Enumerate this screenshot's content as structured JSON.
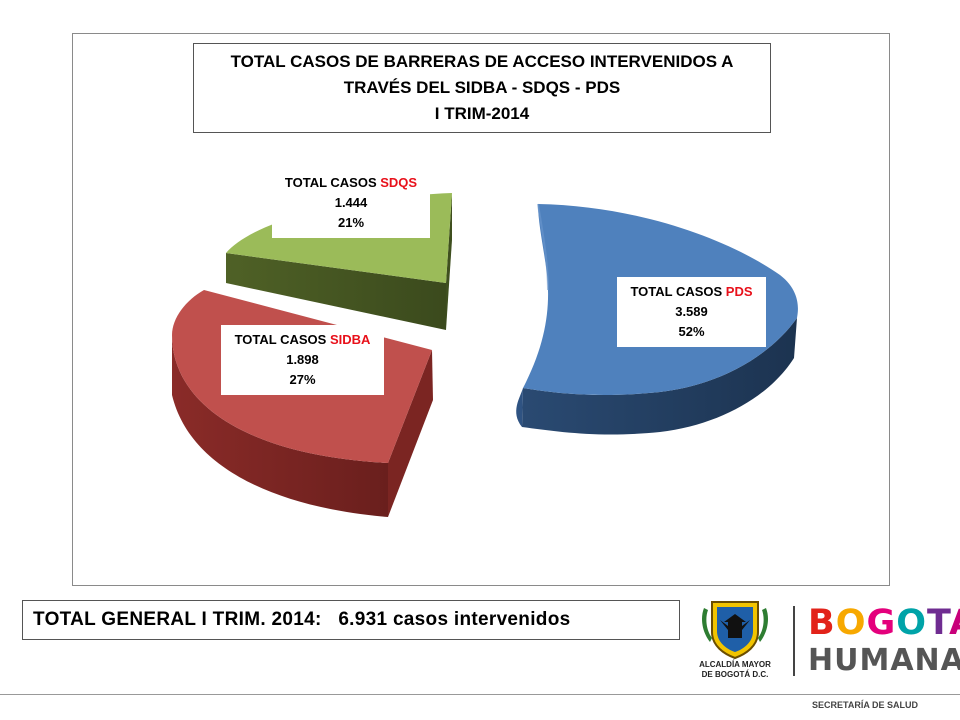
{
  "chart_data": {
    "type": "pie",
    "title_lines": [
      "TOTAL CASOS DE BARRERAS DE ACCESO INTERVENIDOS A",
      "TRAVÉS DEL SIDBA - SDQS - PDS",
      "I TRIM-2014"
    ],
    "slices": [
      {
        "prefix": "TOTAL CASOS ",
        "name": "PDS",
        "value_text": "3.589",
        "value": 3589,
        "pct": "52%",
        "color": "#4f81bd"
      },
      {
        "prefix": "TOTAL CASOS ",
        "name": "SIDBA",
        "value_text": "1.898",
        "value": 1898,
        "pct": "27%",
        "color": "#c0504d"
      },
      {
        "prefix": "TOTAL CASOS ",
        "name": "SDQS",
        "value_text": "1.444",
        "value": 1444,
        "pct": "21%",
        "color": "#9bbb59"
      }
    ]
  },
  "footer": {
    "label": "TOTAL GENERAL I TRIM. 2014:",
    "value": "   6.931 casos intervenidos"
  },
  "crest": {
    "line1": "ALCALDÍA MAYOR",
    "line2": "DE BOGOTÁ D.C."
  },
  "brand": {
    "word1_letters": [
      "B",
      "O",
      "G",
      "O",
      "T",
      "Á"
    ],
    "word1_colors": [
      "#e2231a",
      "#f7a800",
      "#e4007c",
      "#00a3a8",
      "#6f2c91",
      "#c8007a"
    ],
    "word2": "HUMANA"
  },
  "department": "SECRETARÍA DE SALUD"
}
